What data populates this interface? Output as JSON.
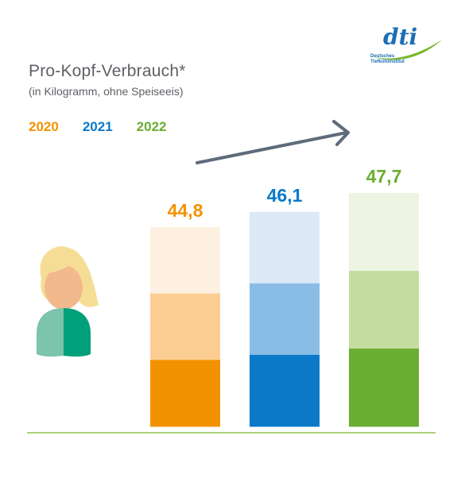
{
  "logo": {
    "text": "dti",
    "subtext_line1": "Deutsches",
    "subtext_line2": "Tiefkühlinstitut"
  },
  "chart_data": {
    "type": "bar",
    "title": "Pro-Kopf-Verbrauch*",
    "subtitle": "(in Kilogramm, ohne Speiseeis)",
    "categories": [
      "2020",
      "2021",
      "2022"
    ],
    "values": [
      44.8,
      46.1,
      47.7
    ],
    "value_labels": [
      "44,8",
      "46,1",
      "47,7"
    ],
    "colors": {
      "2020": {
        "dark": "#f39200",
        "mid": "#fccd92",
        "light": "#fdf0e1"
      },
      "2021": {
        "dark": "#0a79c8",
        "mid": "#8abde6",
        "light": "#dde9f7"
      },
      "2022": {
        "dark": "#6aae32",
        "mid": "#c4dd9f",
        "light": "#eef4e3"
      }
    },
    "legend_position": "top-left",
    "trend_arrow": "up",
    "ylim": [
      0,
      50
    ],
    "grid": false
  }
}
